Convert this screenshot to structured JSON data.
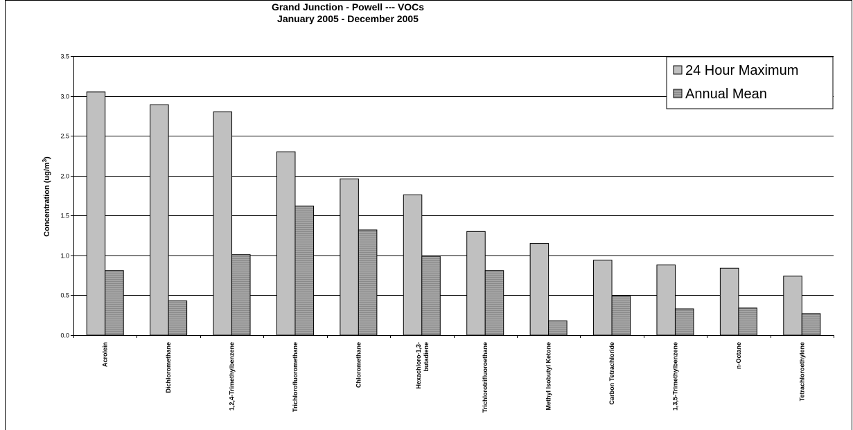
{
  "chart_data": {
    "type": "bar",
    "title": "Grand Junction - Powell --- VOCs",
    "subtitle": "January 2005 - December 2005",
    "ylabel": "Concentration (ug/m",
    "ylabel_sup": "3",
    "ylabel_end": ")",
    "ylim": [
      0,
      3.5
    ],
    "yticks": [
      "0.0",
      "0.5",
      "1.0",
      "1.5",
      "2.0",
      "2.5",
      "3.0",
      "3.5"
    ],
    "grid": true,
    "legend_position": "top-right",
    "categories": [
      [
        "Acrolein"
      ],
      [
        "Dichloromethane"
      ],
      [
        "1,2,4-Trimethylbenzene"
      ],
      [
        "Trichlorofluoromethane"
      ],
      [
        "Chloromethane"
      ],
      [
        "Hexachloro-1,3-",
        "butadiene"
      ],
      [
        "Trichlorotrifluoroethane"
      ],
      [
        "Methyl Isobutyl Ketone"
      ],
      [
        "Carbon Tetrachloride"
      ],
      [
        "1,3,5-Trimethylbenzene"
      ],
      [
        "n-Octane"
      ],
      [
        "Tetrachloroethylene"
      ]
    ],
    "series": [
      {
        "name": "24 Hour Maximum",
        "color": "#c0c0c0",
        "values": [
          3.05,
          2.89,
          2.8,
          2.3,
          1.96,
          1.76,
          1.3,
          1.15,
          0.94,
          0.88,
          0.84,
          0.74
        ]
      },
      {
        "name": "Annual Mean",
        "color": "#a0a0a0",
        "values": [
          0.81,
          0.43,
          1.01,
          1.62,
          1.32,
          0.99,
          0.81,
          0.18,
          0.49,
          0.33,
          0.34,
          0.27
        ]
      }
    ]
  }
}
